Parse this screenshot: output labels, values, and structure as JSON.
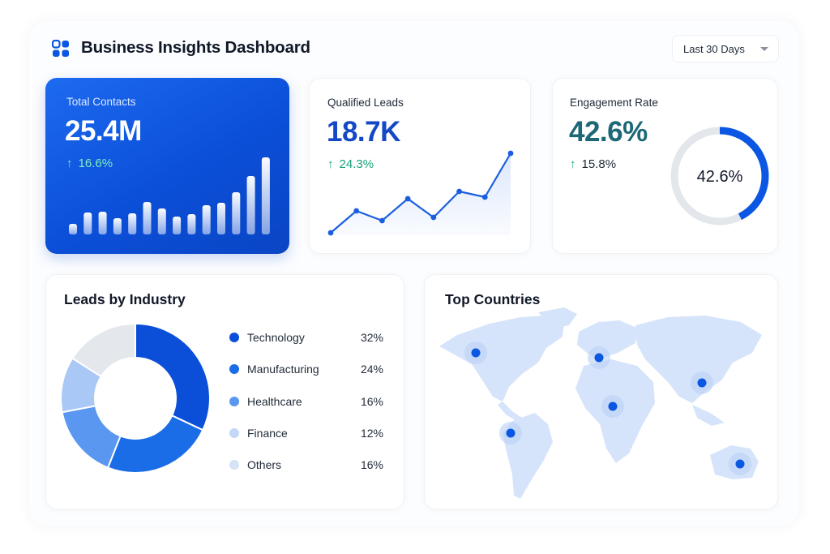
{
  "header": {
    "title": "Business Insights Dashboard",
    "range_label": "Last 30 Days",
    "icon": "dashboard-grid-icon"
  },
  "colors": {
    "primary": "#0b4fd8",
    "accent_blue": "#1548c7",
    "teal": "#1c6876",
    "positive": "#17a37a",
    "light_blue": "#d6e4fb"
  },
  "metrics": [
    {
      "label": "Total Contacts",
      "value": "25.4M",
      "change": "16.6%",
      "chart": {
        "type": "bar",
        "values": [
          13,
          27,
          28,
          20,
          26,
          40,
          32,
          22,
          25,
          36,
          39,
          52,
          72,
          95
        ]
      }
    },
    {
      "label": "Qualified Leads",
      "value": "18.7K",
      "change": "24.3%",
      "chart": {
        "type": "line",
        "values": [
          3,
          30,
          18,
          45,
          22,
          54,
          47,
          101
        ]
      }
    },
    {
      "label": "Engagement Rate",
      "value": "42.6%",
      "change": "15.8%",
      "gauge": {
        "value": 42.6,
        "label": "42.6%"
      }
    }
  ],
  "industry": {
    "title": "Leads by Industry",
    "segments": [
      {
        "name": "Technology",
        "pct": "32%",
        "value": 32,
        "color": "#0b4fd8"
      },
      {
        "name": "Manufacturing",
        "pct": "24%",
        "value": 24,
        "color": "#1a6de6"
      },
      {
        "name": "Healthcare",
        "pct": "16%",
        "value": 16,
        "color": "#5a97f0"
      },
      {
        "name": "Finance",
        "pct": "12%",
        "value": 12,
        "color": "#a9c8f5"
      },
      {
        "name": "Others",
        "pct": "16%",
        "value": 16,
        "color": "#e4e7ec"
      }
    ]
  },
  "countries": {
    "title": "Top Countries",
    "markers": [
      "north-america",
      "europe",
      "africa",
      "south-america",
      "east-asia",
      "australia"
    ]
  }
}
